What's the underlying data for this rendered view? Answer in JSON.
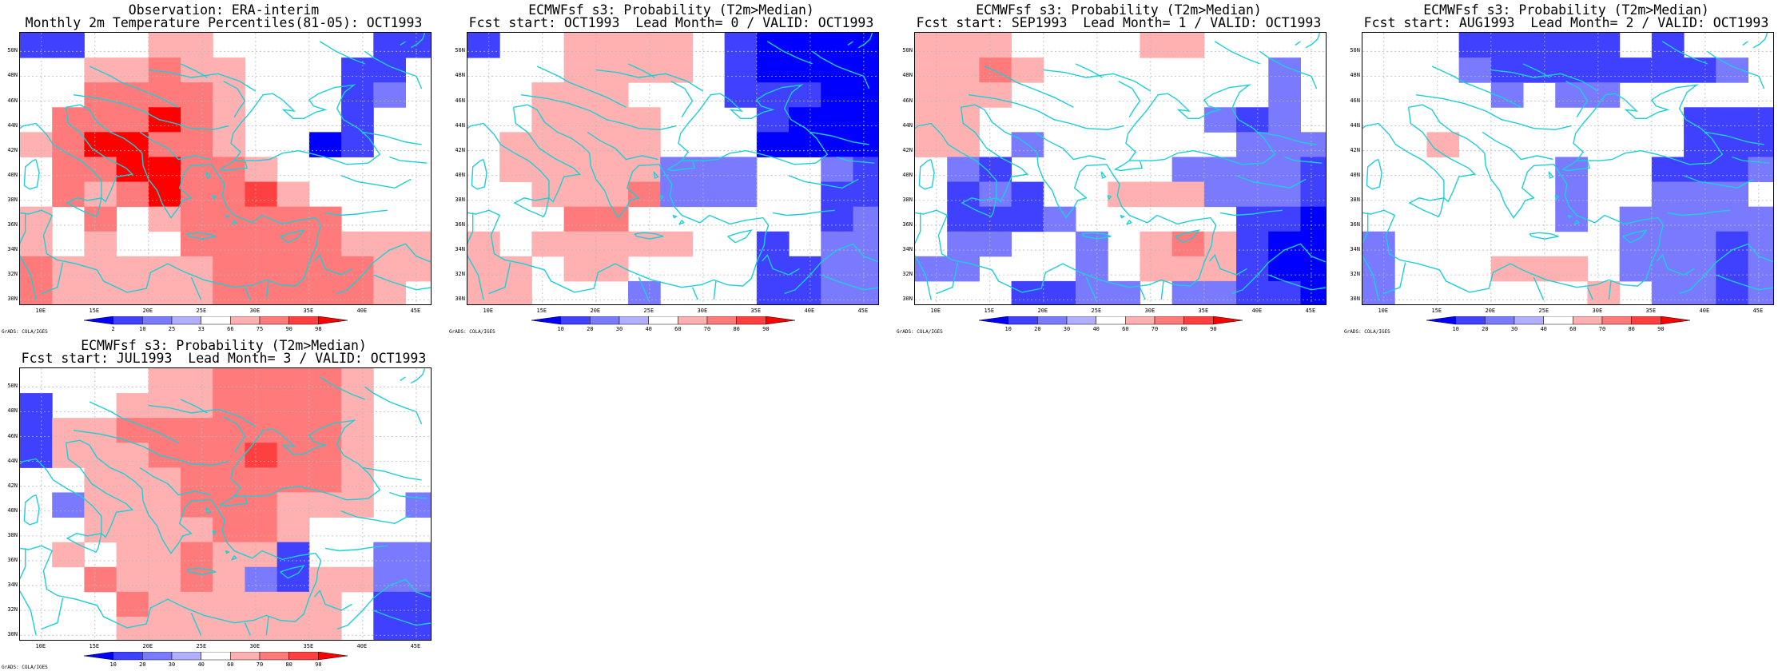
{
  "colors": {
    "coast": "#1ccfd6",
    "grid": "#b8b8b8",
    "blues": [
      "#0000ff",
      "#4040ff",
      "#7a7aff",
      "#b0b0ff"
    ],
    "reds": [
      "#ffb0b0",
      "#ff7a7a",
      "#ff4040",
      "#ff0000"
    ]
  },
  "lat_labels": [
    "50N",
    "48N",
    "46N",
    "44N",
    "42N",
    "40N",
    "38N",
    "36N",
    "34N",
    "32N",
    "30N"
  ],
  "lon_labels": [
    "10E",
    "15E",
    "20E",
    "25E",
    "30E",
    "35E",
    "40E",
    "45E"
  ],
  "footer": "GrADS: COLA/IGES",
  "panels": [
    {
      "title1": "Observation: ERA-interim",
      "title2": "Monthly 2m Temperature Percentiles(81-05): OCT1993",
      "colorbar_labels": [
        "2",
        "10",
        "25",
        "33",
        "66",
        "75",
        "90",
        "98"
      ],
      "grid": [
        "BB00RR00000BB",
        "00RRSRR000BB0",
        "00SSSSR000BC0",
        "0SSSUSR000B00",
        "RSUUSSR00AB00",
        "0SSUUSSR00000",
        "0SRSUSSTR0000",
        "R0S0RSSSSS000",
        "R0R00SSSSSRRR",
        "SRRRRRSSSSSRR",
        "SRRRRRSSSSSR0"
      ]
    },
    {
      "title1": "ECMWFsf s3: Probability (T2m>Median)",
      "title2": "Fcst start: OCT1993  Lead Month= 0 / VALID: OCT1993",
      "colorbar_labels": [
        "10",
        "20",
        "30",
        "40",
        "60",
        "70",
        "80",
        "90"
      ],
      "grid": [
        "B00RRRR0BAAAA",
        "000RRRR0BAAAA",
        "00RRR000BBBAA",
        "00RRRR000BAAA",
        "0RRRRR000AAAA",
        "0RRRRRCCC00CB",
        "00RRRSCCC00BB",
        "000SS000000BC",
        "R0RRRRR00B0CC",
        "RR0RR0000BBCC",
        "RR000C000BBCC"
      ]
    },
    {
      "title1": "ECMWFsf s3: Probability (T2m>Median)",
      "title2": "Fcst start: SEP1993  Lead Month= 1 / VALID: OCT1993",
      "colorbar_labels": [
        "10",
        "20",
        "30",
        "40",
        "60",
        "70",
        "80",
        "90"
      ],
      "grid": [
        "RRR0000RR0000",
        "RRSR0000000C0",
        "RRR00000000C0",
        "RR0000000CBC0",
        "RR0C000000CCC",
        "0CB00000CCCCB",
        "0BCB00RRRCCCB",
        "0BBBC00000BBA",
        "0CC00C0RSRBAA",
        "CC000C0RRRBAA",
        "000BBCC0CCBBA"
      ]
    },
    {
      "title1": "ECMWFsf s3: Probability (T2m>Median)",
      "title2": "Fcst start: AUG1993  Lead Month= 2 / VALID: OCT1993",
      "colorbar_labels": [
        "10",
        "20",
        "30",
        "40",
        "60",
        "70",
        "80",
        "90"
      ],
      "grid": [
        "000BBBBB0B000",
        "000CBBBBBBBC0",
        "0000C0CC00000",
        "0000000000BBB",
        "00R0000000BBB",
        "000000C00BBBC",
        "000000C00CCC0",
        "000000C0CCCCC",
        "C0000000CCCBC",
        "C000RRR0CCCBC",
        "C000000R0CCBC"
      ]
    },
    {
      "title1": "ECMWFsf s3: Probability (T2m>Median)",
      "title2": "Fcst start: JUL1993  Lead Month= 3 / VALID: OCT1993",
      "colorbar_labels": [
        "10",
        "20",
        "30",
        "40",
        "60",
        "70",
        "80",
        "90"
      ],
      "grid": [
        "0000RRSSSSR00",
        "B00RRRSSSSR00",
        "BRRSSSSSSSR00",
        "BRRRSSSTSSR00",
        "00RRRSSSSSR00",
        "0CRRRSSSRRR0C",
        "00RRRRSSR0000",
        "0R0RRSRRB00CC",
        "00SRRSRCBRRCC",
        "000SRRRRRR0BB",
        "000RRRRRRR0BB"
      ]
    }
  ]
}
